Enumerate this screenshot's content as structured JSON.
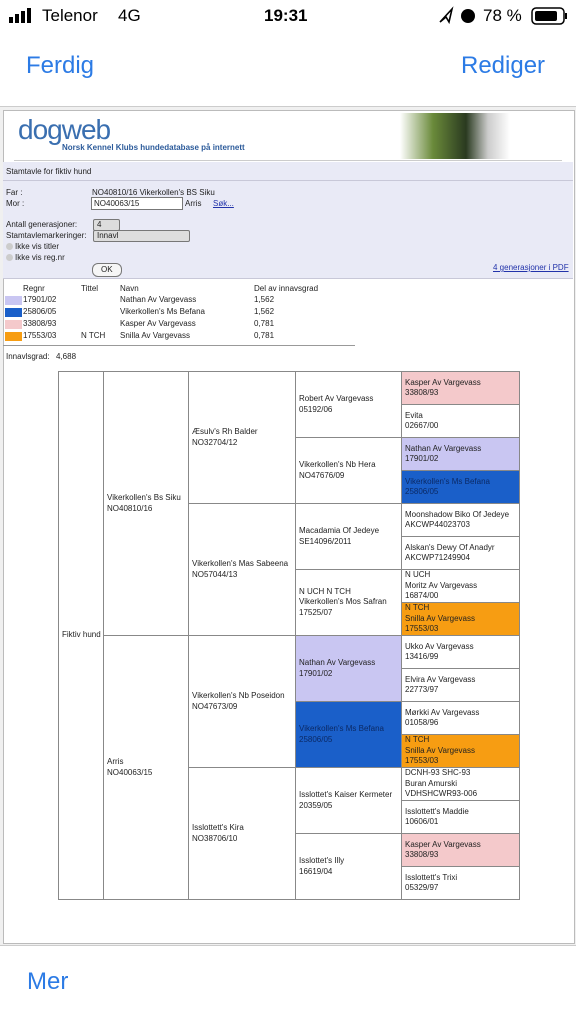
{
  "status_bar": {
    "carrier": "Telenor",
    "network": "4G",
    "time": "19:31",
    "battery": "78 %"
  },
  "nav": {
    "left": "Ferdig",
    "right": "Rediger"
  },
  "header": {
    "logo": "dogweb",
    "subtitle": "Norsk Kennel Klubs hundedatabase på internett"
  },
  "form": {
    "title": "Stamtavle for fiktiv hund",
    "far_label": "Far :",
    "far_value": "NO40810/16  Vikerkollen's BS Siku",
    "mor_label": "Mor :",
    "mor_input": "NO40063/15",
    "mor_name": "Arris",
    "search": "Søk...",
    "generations_label": "Antall generasjoner:",
    "generations_value": "4",
    "markings_label": "Stamtavlemarkeringer:",
    "markings_value": "Innavl",
    "checkbox_titles": "Ikke vis titler",
    "checkbox_regnr": "Ikke vis reg.nr",
    "ok": "OK",
    "pdf_link": "4 generasjoner i PDF"
  },
  "legend": {
    "headers": [
      "Regnr",
      "Tittel",
      "Navn",
      "Del av innavsgrad"
    ],
    "rows": [
      {
        "color": "#c9c6f2",
        "regnr": "17901/02",
        "navn": "Nathan Av Vargevass",
        "del": "1,562"
      },
      {
        "color": "#1a5fc9",
        "regnr": "25806/05",
        "navn": "Vikerkollen's Ms Befana",
        "del": "1,562"
      },
      {
        "color": "#f4c9cb",
        "regnr": "33808/93",
        "navn": "Kasper Av Vargevass",
        "del": "0,781"
      },
      {
        "color": "#f79d12",
        "regnr": "17553/03",
        "tittel": "N TCH",
        "navn": "Snilla Av Vargevass",
        "del": "0,781"
      }
    ]
  },
  "inbreeding": {
    "label": "Innavlsgrad:",
    "value": "4,688"
  },
  "pedigree": {
    "columns": [
      [
        {
          "lines": [
            "Fiktiv hund"
          ]
        }
      ],
      [
        {
          "lines": [
            "Vikerkollen's Bs Siku",
            "NO40810/16"
          ]
        },
        {
          "lines": [
            "Arris",
            "NO40063/15"
          ]
        }
      ],
      [
        {
          "lines": [
            "Æsulv's Rh Balder",
            "NO32704/12"
          ]
        },
        {
          "lines": [
            "Vikerkollen's Mas Sabeena",
            "NO57044/13"
          ]
        },
        {
          "lines": [
            "Vikerkollen's Nb Poseidon",
            "NO47673/09"
          ]
        },
        {
          "lines": [
            "Isslottett's Kira",
            "NO38706/10"
          ]
        }
      ],
      [
        {
          "lines": [
            "Robert Av Vargevass",
            "05192/06"
          ]
        },
        {
          "lines": [
            "Vikerkollen's Nb Hera",
            "NO47676/09"
          ]
        },
        {
          "lines": [
            "Macadamia Of Jedeye",
            "SE14096/2011"
          ]
        },
        {
          "lines": [
            "N UCH N TCH",
            "Vikerkollen's Mos Safran",
            "17525/07"
          ]
        },
        {
          "lines": [
            "Nathan Av Vargevass",
            "17901/02"
          ],
          "color": "#c9c6f2"
        },
        {
          "lines": [
            "Vikerkollen's Ms Befana",
            "25806/05"
          ],
          "color": "#1a5fc9"
        },
        {
          "lines": [
            "Isslottet's Kaiser Kermeter",
            "20359/05"
          ]
        },
        {
          "lines": [
            "Isslottet's Illy",
            "16619/04"
          ]
        }
      ],
      [
        {
          "lines": [
            "Kasper Av Vargevass",
            "33808/93"
          ],
          "color": "#f4c9cb"
        },
        {
          "lines": [
            "Evita",
            "02667/00"
          ]
        },
        {
          "lines": [
            "Nathan Av Vargevass",
            "17901/02"
          ],
          "color": "#c9c6f2"
        },
        {
          "lines": [
            "Vikerkollen's Ms Befana",
            "25806/05"
          ],
          "color": "#1a5fc9"
        },
        {
          "lines": [
            "Moonshadow Biko Of Jedeye",
            "AKCWP44023703"
          ]
        },
        {
          "lines": [
            "Alskan's Dewy Of Anadyr",
            "AKCWP71249904"
          ]
        },
        {
          "lines": [
            "N UCH",
            "Moritz Av Vargevass",
            "16874/00"
          ]
        },
        {
          "lines": [
            "N TCH",
            "Snilla Av Vargevass",
            "17553/03"
          ],
          "color": "#f79d12"
        },
        {
          "lines": [
            "Ukko Av Vargevass",
            "13416/99"
          ]
        },
        {
          "lines": [
            "Elvira Av Vargevass",
            "22773/97"
          ]
        },
        {
          "lines": [
            "Mørkki Av Vargevass",
            "01058/96"
          ]
        },
        {
          "lines": [
            "N TCH",
            "Snilla Av Vargevass",
            "17553/03"
          ],
          "color": "#f79d12"
        },
        {
          "lines": [
            "DCNH-93 SHC-93",
            "Buran Amurski",
            "VDHSHCWR93-006"
          ]
        },
        {
          "lines": [
            "Isslottett's Maddie",
            "10606/01"
          ]
        },
        {
          "lines": [
            "Kasper Av Vargevass",
            "33808/93"
          ],
          "color": "#f4c9cb"
        },
        {
          "lines": [
            "Isslottett's Trixi",
            "05329/97"
          ]
        }
      ]
    ]
  },
  "bottom": {
    "more": "Mer"
  }
}
